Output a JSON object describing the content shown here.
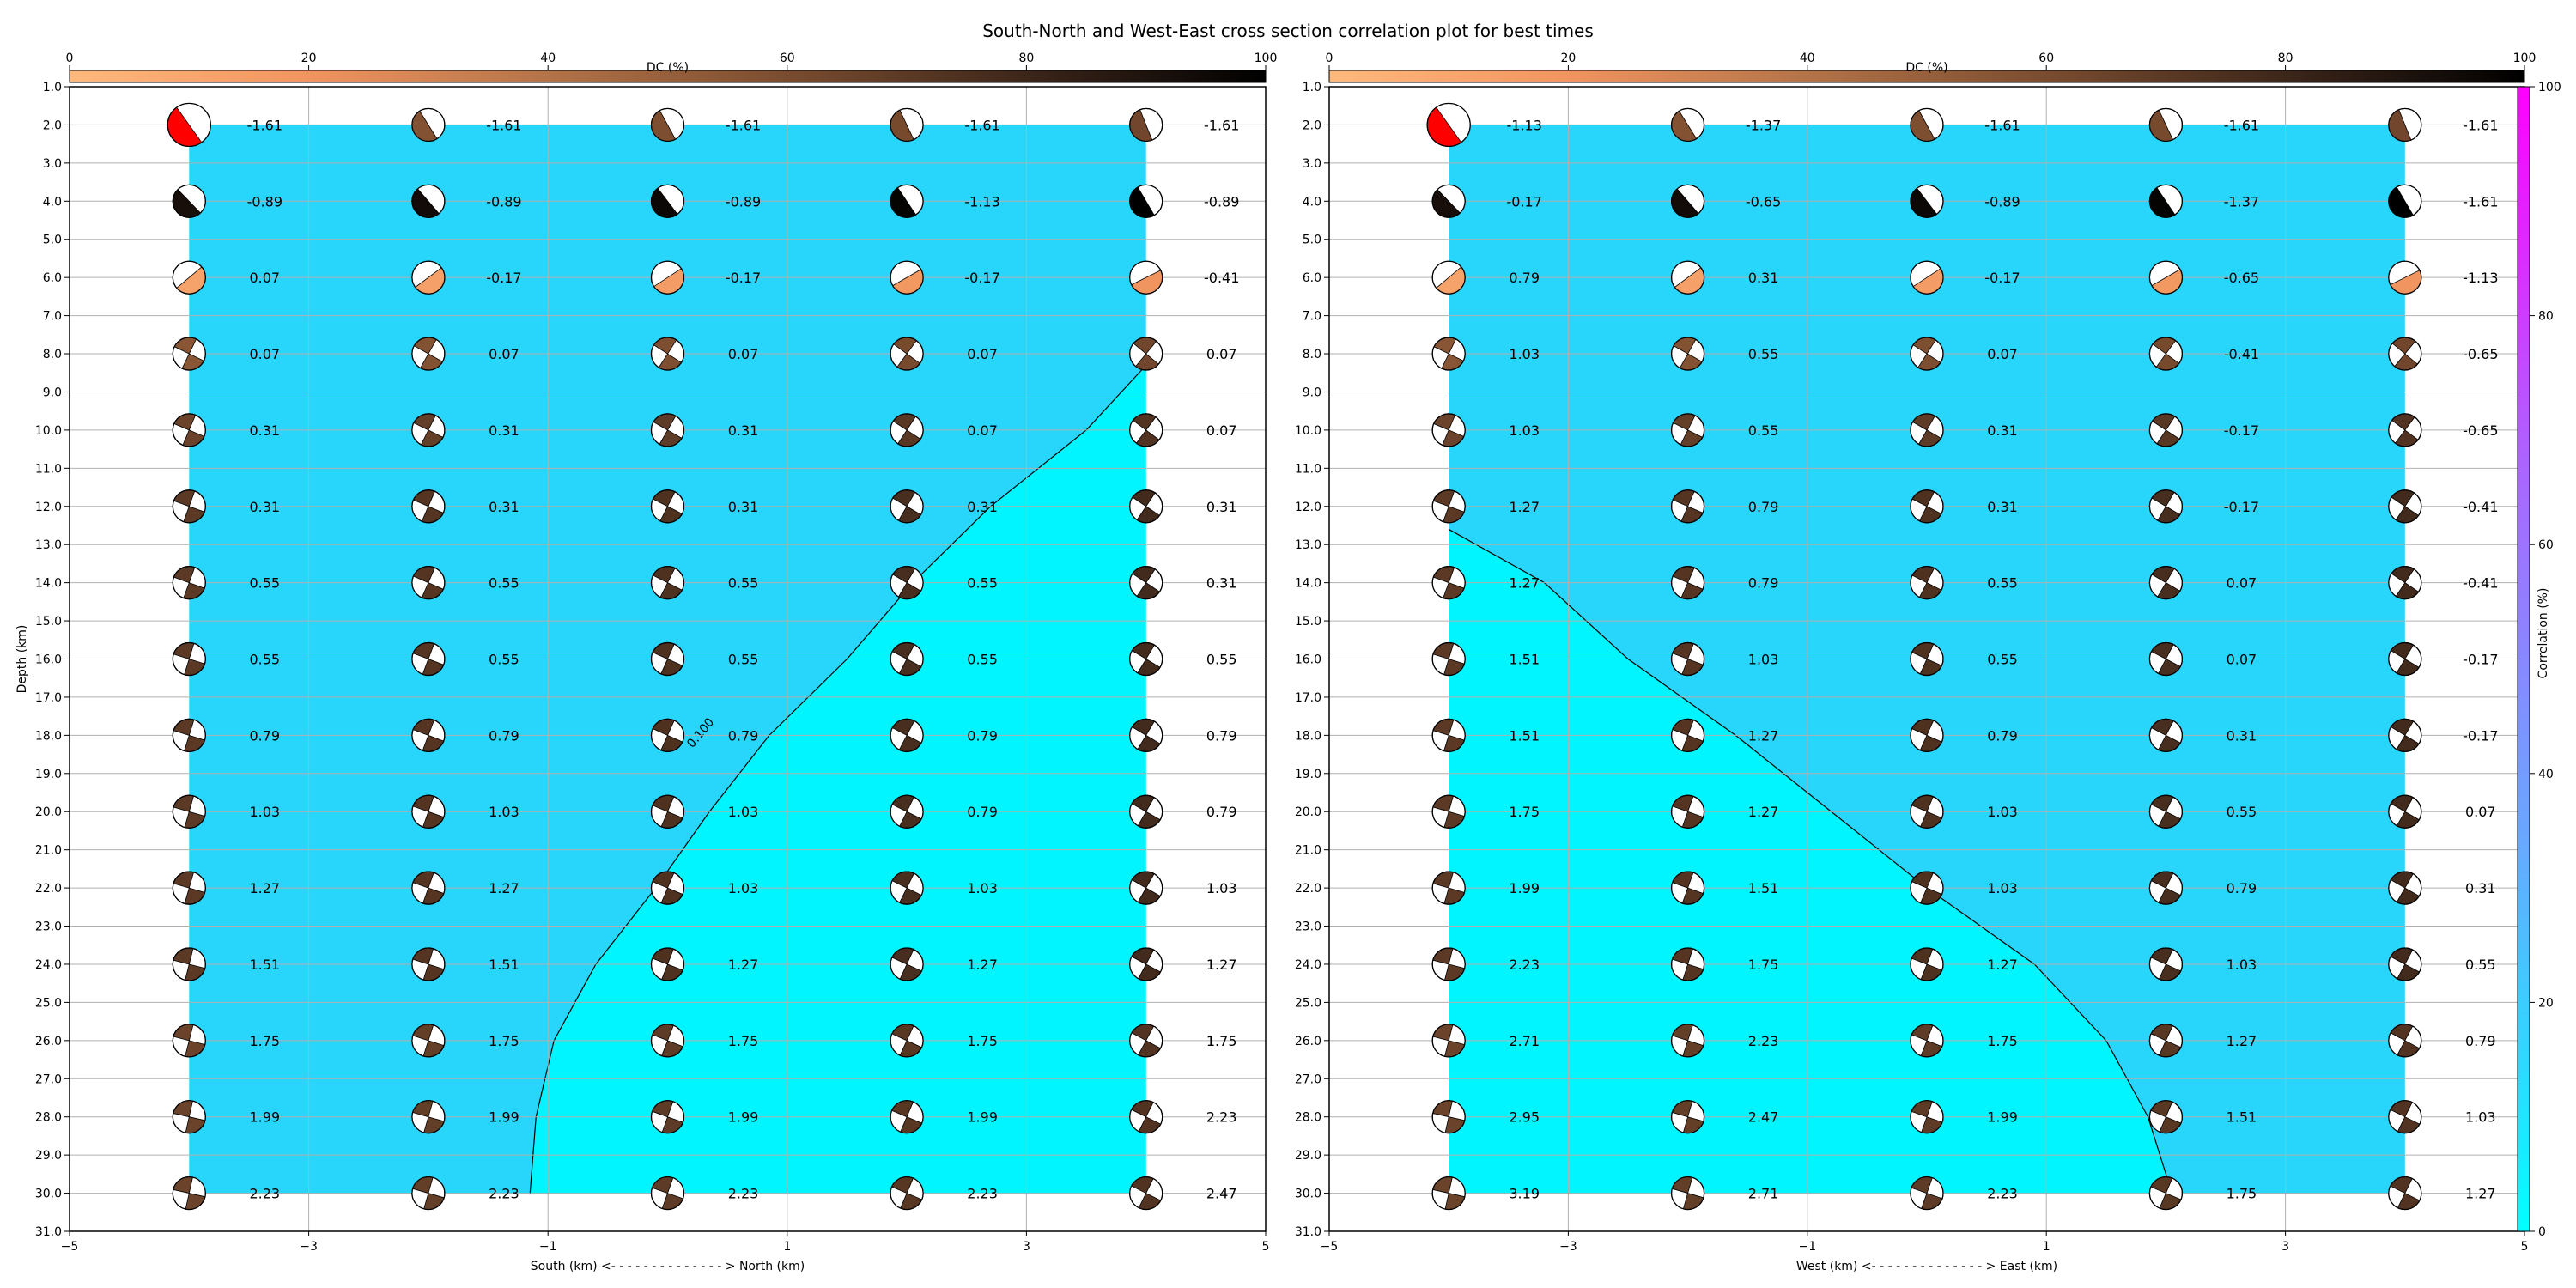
{
  "title": "South-North and West-East cross section correlation plot for best times",
  "colors": {
    "corr_low": "#00f5ff",
    "corr_mid": "#28d5fb",
    "contour": "#000000",
    "dc_scale": [
      "#ffb97d",
      "#f0955f",
      "#b47348",
      "#7a4c2f",
      "#3c261a",
      "#000000"
    ],
    "corr_scale": [
      "#00ffff",
      "#66aaff",
      "#aa66ff",
      "#ff00ff"
    ],
    "best_solution": "#ff0000"
  },
  "dc_colorbar": {
    "label": "DC (%)",
    "ticks": [
      "0",
      "20",
      "40",
      "60",
      "80",
      "100"
    ],
    "range": [
      0,
      100
    ]
  },
  "corr_colorbar": {
    "label": "Correlation (%)",
    "ticks": [
      "0",
      "20",
      "40",
      "60",
      "80",
      "100"
    ],
    "range": [
      0,
      100
    ]
  },
  "chart_data": [
    {
      "type": "heatmap",
      "xlabel": "South (km) <- - - - - - - - - - - - - - > North (km)",
      "ylabel": "Depth (km)",
      "xlim": [
        -5,
        5
      ],
      "ylim": [
        31,
        1
      ],
      "x_ticks": [
        "−5",
        "−3",
        "−1",
        "1",
        "3",
        "5"
      ],
      "y_ticks": [
        "1.0",
        "2.0",
        "3.0",
        "4.0",
        "5.0",
        "6.0",
        "7.0",
        "8.0",
        "9.0",
        "10.0",
        "11.0",
        "12.0",
        "13.0",
        "14.0",
        "15.0",
        "16.0",
        "17.0",
        "18.0",
        "19.0",
        "20.0",
        "21.0",
        "22.0",
        "23.0",
        "24.0",
        "25.0",
        "26.0",
        "27.0",
        "28.0",
        "29.0",
        "30.0",
        "31.0"
      ],
      "x_positions": [
        -4,
        -2,
        0,
        2,
        4
      ],
      "depths": [
        2,
        4,
        6,
        8,
        10,
        12,
        14,
        16,
        18,
        20,
        22,
        24,
        26,
        28,
        30
      ],
      "time_shifts": [
        [
          "-1.61",
          "-1.61",
          "-1.61",
          "-1.61",
          "-1.61"
        ],
        [
          "-0.89",
          "-0.89",
          "-0.89",
          "-1.13",
          "-0.89"
        ],
        [
          "0.07",
          "-0.17",
          "-0.17",
          "-0.17",
          "-0.41"
        ],
        [
          "0.07",
          "0.07",
          "0.07",
          "0.07",
          "0.07"
        ],
        [
          "0.31",
          "0.31",
          "0.31",
          "0.07",
          "0.07"
        ],
        [
          "0.31",
          "0.31",
          "0.31",
          "0.31",
          "0.31"
        ],
        [
          "0.55",
          "0.55",
          "0.55",
          "0.55",
          "0.31"
        ],
        [
          "0.55",
          "0.55",
          "0.55",
          "0.55",
          "0.55"
        ],
        [
          "0.79",
          "0.79",
          "0.79",
          "0.79",
          "0.79"
        ],
        [
          "1.03",
          "1.03",
          "1.03",
          "0.79",
          "0.79"
        ],
        [
          "1.27",
          "1.27",
          "1.03",
          "1.03",
          "1.03"
        ],
        [
          "1.51",
          "1.51",
          "1.27",
          "1.27",
          "1.27"
        ],
        [
          "1.75",
          "1.75",
          "1.75",
          "1.75",
          "1.75"
        ],
        [
          "1.99",
          "1.99",
          "1.99",
          "1.99",
          "2.23"
        ],
        [
          "2.23",
          "2.23",
          "2.23",
          "2.23",
          "2.47"
        ]
      ],
      "contour_label": "0.100",
      "contour": [
        [
          -1.15,
          30
        ],
        [
          -1.1,
          28
        ],
        [
          -0.95,
          26
        ],
        [
          -0.6,
          24
        ],
        [
          -0.1,
          22
        ],
        [
          0.35,
          20
        ],
        [
          0.85,
          18
        ],
        [
          1.5,
          16
        ],
        [
          2.05,
          14
        ],
        [
          2.7,
          12
        ],
        [
          3.5,
          10
        ],
        [
          4,
          8.3
        ]
      ],
      "best": [
        0,
        0
      ],
      "dc_percent": [
        90,
        45
      ]
    },
    {
      "type": "heatmap",
      "xlabel": "West (km) <- - - - - - - - - - - - - - > East (km)",
      "ylabel": "",
      "xlim": [
        -5,
        5
      ],
      "ylim": [
        31,
        1
      ],
      "x_ticks": [
        "−5",
        "−3",
        "−1",
        "1",
        "3",
        "5"
      ],
      "y_ticks": [
        "1.0",
        "2.0",
        "3.0",
        "4.0",
        "5.0",
        "6.0",
        "7.0",
        "8.0",
        "9.0",
        "10.0",
        "11.0",
        "12.0",
        "13.0",
        "14.0",
        "15.0",
        "16.0",
        "17.0",
        "18.0",
        "19.0",
        "20.0",
        "21.0",
        "22.0",
        "23.0",
        "24.0",
        "25.0",
        "26.0",
        "27.0",
        "28.0",
        "29.0",
        "30.0",
        "31.0"
      ],
      "x_positions": [
        -4,
        -2,
        0,
        2,
        4
      ],
      "depths": [
        2,
        4,
        6,
        8,
        10,
        12,
        14,
        16,
        18,
        20,
        22,
        24,
        26,
        28,
        30
      ],
      "time_shifts": [
        [
          "-1.13",
          "-1.37",
          "-1.61",
          "-1.61",
          "-1.61"
        ],
        [
          "-0.17",
          "-0.65",
          "-0.89",
          "-1.37",
          "-1.61"
        ],
        [
          "0.79",
          "0.31",
          "-0.17",
          "-0.65",
          "-1.13"
        ],
        [
          "1.03",
          "0.55",
          "0.07",
          "-0.41",
          "-0.65"
        ],
        [
          "1.03",
          "0.55",
          "0.31",
          "-0.17",
          "-0.65"
        ],
        [
          "1.27",
          "0.79",
          "0.31",
          "-0.17",
          "-0.41"
        ],
        [
          "1.27",
          "0.79",
          "0.55",
          "0.07",
          "-0.41"
        ],
        [
          "1.51",
          "1.03",
          "0.55",
          "0.07",
          "-0.17"
        ],
        [
          "1.51",
          "1.27",
          "0.79",
          "0.31",
          "-0.17"
        ],
        [
          "1.75",
          "1.27",
          "1.03",
          "0.55",
          "0.07"
        ],
        [
          "1.99",
          "1.51",
          "1.03",
          "0.79",
          "0.31"
        ],
        [
          "2.23",
          "1.75",
          "1.27",
          "1.03",
          "0.55"
        ],
        [
          "2.71",
          "2.23",
          "1.75",
          "1.27",
          "0.79"
        ],
        [
          "2.95",
          "2.47",
          "1.99",
          "1.51",
          "1.03"
        ],
        [
          "3.19",
          "2.71",
          "2.23",
          "1.75",
          "1.27"
        ]
      ],
      "contour_label": "",
      "contour": [
        [
          -4,
          12.6
        ],
        [
          -3.2,
          14
        ],
        [
          -2.5,
          16
        ],
        [
          -1.6,
          18
        ],
        [
          -0.8,
          20
        ],
        [
          0,
          22
        ],
        [
          0.9,
          24
        ],
        [
          1.5,
          26
        ],
        [
          1.85,
          28
        ],
        [
          2.05,
          30
        ]
      ],
      "best": [
        0,
        0
      ],
      "dc_percent": [
        90,
        45
      ]
    }
  ]
}
